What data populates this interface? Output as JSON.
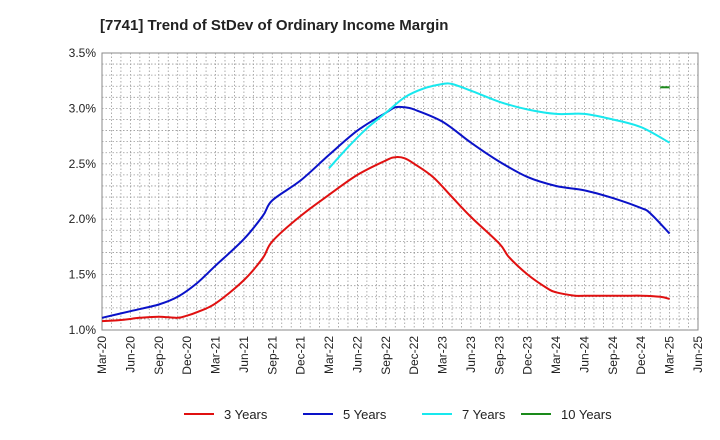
{
  "chart_data": {
    "type": "line",
    "title": "[7741]  Trend of StDev of Ordinary Income Margin",
    "xlabel": "",
    "ylabel": "",
    "x_ticks": [
      "Mar-20",
      "Jun-20",
      "Sep-20",
      "Dec-20",
      "Mar-21",
      "Jun-21",
      "Sep-21",
      "Dec-21",
      "Mar-22",
      "Jun-22",
      "Sep-22",
      "Dec-22",
      "Mar-23",
      "Jun-23",
      "Sep-23",
      "Dec-23",
      "Mar-24",
      "Jun-24",
      "Sep-24",
      "Dec-24",
      "Mar-25",
      "Jun-25"
    ],
    "y_ticks": [
      "1.0%",
      "1.5%",
      "2.0%",
      "2.5%",
      "3.0%",
      "3.5%"
    ],
    "ylim": [
      1.0,
      3.5
    ],
    "grid": true,
    "legend_position": "bottom",
    "colors": {
      "3y": "#e01010",
      "5y": "#0a12c8",
      "7y": "#18e8ee",
      "10y": "#1a8a1a",
      "grid": "#999999",
      "axis": "#888888"
    },
    "series": [
      {
        "name": "3 Years",
        "color": "#e01010",
        "points": [
          {
            "x": "Mar-20",
            "y": 1.08
          },
          {
            "x": "May-20",
            "y": 1.09
          },
          {
            "x": "Jul-20",
            "y": 1.11
          },
          {
            "x": "Sep-20",
            "y": 1.12
          },
          {
            "x": "Nov-20",
            "y": 1.11
          },
          {
            "x": "Dec-20",
            "y": 1.13
          },
          {
            "x": "Jan-21",
            "y": 1.16
          },
          {
            "x": "Mar-21",
            "y": 1.24
          },
          {
            "x": "Jun-21",
            "y": 1.45
          },
          {
            "x": "Aug-21",
            "y": 1.65
          },
          {
            "x": "Sep-21",
            "y": 1.8
          },
          {
            "x": "Dec-21",
            "y": 2.03
          },
          {
            "x": "Mar-22",
            "y": 2.22
          },
          {
            "x": "Jun-22",
            "y": 2.4
          },
          {
            "x": "Sep-22",
            "y": 2.53
          },
          {
            "x": "Oct-22",
            "y": 2.56
          },
          {
            "x": "Nov-22",
            "y": 2.55
          },
          {
            "x": "Dec-22",
            "y": 2.5
          },
          {
            "x": "Feb-23",
            "y": 2.38
          },
          {
            "x": "Apr-23",
            "y": 2.2
          },
          {
            "x": "Jun-23",
            "y": 2.02
          },
          {
            "x": "Sep-23",
            "y": 1.78
          },
          {
            "x": "Oct-23",
            "y": 1.66
          },
          {
            "x": "Dec-23",
            "y": 1.5
          },
          {
            "x": "Feb-24",
            "y": 1.38
          },
          {
            "x": "Mar-24",
            "y": 1.34
          },
          {
            "x": "May-24",
            "y": 1.31
          },
          {
            "x": "Jun-24",
            "y": 1.31
          },
          {
            "x": "Sep-24",
            "y": 1.31
          },
          {
            "x": "Nov-24",
            "y": 1.31
          },
          {
            "x": "Dec-24",
            "y": 1.31
          },
          {
            "x": "Feb-25",
            "y": 1.3
          },
          {
            "x": "Mar-25",
            "y": 1.28
          }
        ]
      },
      {
        "name": "5 Years",
        "color": "#0a12c8",
        "points": [
          {
            "x": "Mar-20",
            "y": 1.11
          },
          {
            "x": "Jun-20",
            "y": 1.17
          },
          {
            "x": "Sep-20",
            "y": 1.23
          },
          {
            "x": "Nov-20",
            "y": 1.3
          },
          {
            "x": "Jan-21",
            "y": 1.42
          },
          {
            "x": "Mar-21",
            "y": 1.58
          },
          {
            "x": "Jun-21",
            "y": 1.82
          },
          {
            "x": "Aug-21",
            "y": 2.03
          },
          {
            "x": "Sep-21",
            "y": 2.17
          },
          {
            "x": "Dec-21",
            "y": 2.35
          },
          {
            "x": "Mar-22",
            "y": 2.58
          },
          {
            "x": "Jun-22",
            "y": 2.8
          },
          {
            "x": "Sep-22",
            "y": 2.96
          },
          {
            "x": "Oct-22",
            "y": 3.01
          },
          {
            "x": "Nov-22",
            "y": 3.01
          },
          {
            "x": "Dec-22",
            "y": 2.99
          },
          {
            "x": "Mar-23",
            "y": 2.88
          },
          {
            "x": "Jun-23",
            "y": 2.69
          },
          {
            "x": "Sep-23",
            "y": 2.52
          },
          {
            "x": "Dec-23",
            "y": 2.38
          },
          {
            "x": "Mar-24",
            "y": 2.3
          },
          {
            "x": "Jun-24",
            "y": 2.26
          },
          {
            "x": "Sep-24",
            "y": 2.19
          },
          {
            "x": "Dec-24",
            "y": 2.1
          },
          {
            "x": "Jan-25",
            "y": 2.05
          },
          {
            "x": "Mar-25",
            "y": 1.87
          }
        ]
      },
      {
        "name": "7 Years",
        "color": "#18e8ee",
        "points": [
          {
            "x": "Mar-22",
            "y": 2.46
          },
          {
            "x": "May-22",
            "y": 2.65
          },
          {
            "x": "Jul-22",
            "y": 2.82
          },
          {
            "x": "Sep-22",
            "y": 2.96
          },
          {
            "x": "Nov-22",
            "y": 3.1
          },
          {
            "x": "Jan-23",
            "y": 3.18
          },
          {
            "x": "Mar-23",
            "y": 3.22
          },
          {
            "x": "Apr-23",
            "y": 3.22
          },
          {
            "x": "Jun-23",
            "y": 3.16
          },
          {
            "x": "Sep-23",
            "y": 3.06
          },
          {
            "x": "Dec-23",
            "y": 2.99
          },
          {
            "x": "Mar-24",
            "y": 2.95
          },
          {
            "x": "Jun-24",
            "y": 2.95
          },
          {
            "x": "Sep-24",
            "y": 2.9
          },
          {
            "x": "Dec-24",
            "y": 2.83
          },
          {
            "x": "Mar-25",
            "y": 2.69
          }
        ]
      },
      {
        "name": "10 Years",
        "color": "#1a8a1a",
        "points": [
          {
            "x": "Feb-25",
            "y": 3.19
          },
          {
            "x": "Mar-25",
            "y": 3.19
          }
        ]
      }
    ]
  }
}
